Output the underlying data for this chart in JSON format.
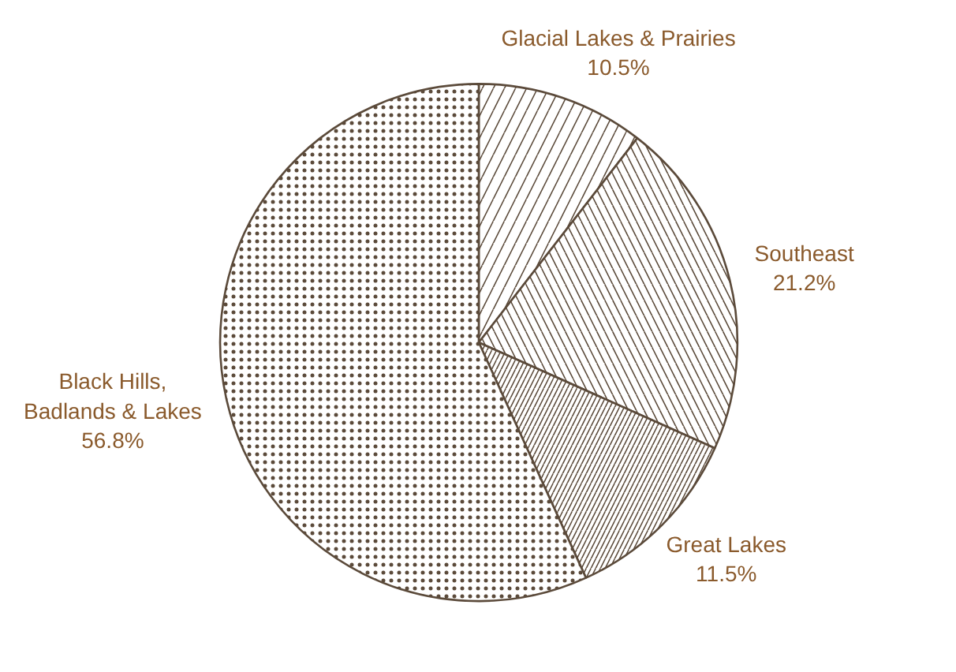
{
  "chart_data": {
    "type": "pie",
    "categories": [
      "Glacial Lakes & Prairies",
      "Southeast",
      "Great Lakes",
      "Black Hills,\nBadlands & Lakes"
    ],
    "values": [
      10.5,
      21.2,
      11.5,
      56.8
    ],
    "value_labels": [
      "10.5%",
      "21.2%",
      "11.5%",
      "56.8%"
    ],
    "colors": [
      "#ffffff",
      "#ffffff",
      "#ffffff",
      "#ffffff"
    ]
  }
}
